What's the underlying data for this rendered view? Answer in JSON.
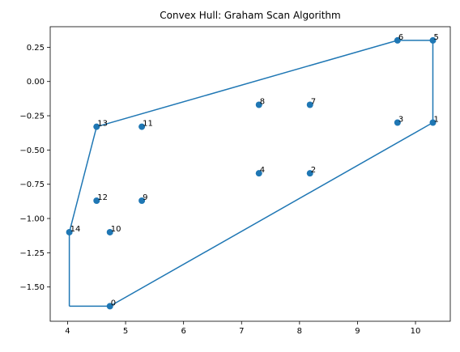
{
  "chart_data": {
    "type": "scatter",
    "title": "Convex Hull: Graham Scan Algorithm",
    "xlabel": "",
    "ylabel": "",
    "xlim": [
      3.7,
      10.6
    ],
    "ylim": [
      -1.75,
      0.4
    ],
    "xticks": [
      4,
      5,
      6,
      7,
      8,
      9,
      10
    ],
    "yticks": [
      0.25,
      0.0,
      -0.25,
      -0.5,
      -0.75,
      -1.0,
      -1.25,
      -1.5
    ],
    "ytick_labels": [
      "0.25",
      "0.00",
      "−0.25",
      "−0.50",
      "−0.75",
      "−1.00",
      "−1.25",
      "−1.50"
    ],
    "points": [
      {
        "label": "0",
        "x": 4.73,
        "y": -1.64
      },
      {
        "label": "1",
        "x": 10.3,
        "y": -0.3
      },
      {
        "label": "2",
        "x": 8.18,
        "y": -0.67
      },
      {
        "label": "3",
        "x": 9.69,
        "y": -0.3
      },
      {
        "label": "4",
        "x": 7.3,
        "y": -0.67
      },
      {
        "label": "5",
        "x": 10.3,
        "y": 0.3
      },
      {
        "label": "6",
        "x": 9.69,
        "y": 0.3
      },
      {
        "label": "7",
        "x": 8.18,
        "y": -0.17
      },
      {
        "label": "8",
        "x": 7.3,
        "y": -0.17
      },
      {
        "label": "9",
        "x": 5.28,
        "y": -0.87
      },
      {
        "label": "10",
        "x": 4.73,
        "y": -1.1
      },
      {
        "label": "11",
        "x": 5.28,
        "y": -0.33
      },
      {
        "label": "12",
        "x": 4.5,
        "y": -0.87
      },
      {
        "label": "13",
        "x": 4.5,
        "y": -0.33
      },
      {
        "label": "14",
        "x": 4.03,
        "y": -1.1
      }
    ],
    "hull": [
      {
        "x": 4.03,
        "y": -1.64
      },
      {
        "x": 4.73,
        "y": -1.64
      },
      {
        "x": 10.3,
        "y": -0.3
      },
      {
        "x": 10.3,
        "y": 0.3
      },
      {
        "x": 9.69,
        "y": 0.3
      },
      {
        "x": 4.5,
        "y": -0.33
      },
      {
        "x": 4.03,
        "y": -1.1
      },
      {
        "x": 4.03,
        "y": -1.64
      }
    ],
    "colors": {
      "series": "#1f77b4",
      "axis": "#000000"
    }
  }
}
